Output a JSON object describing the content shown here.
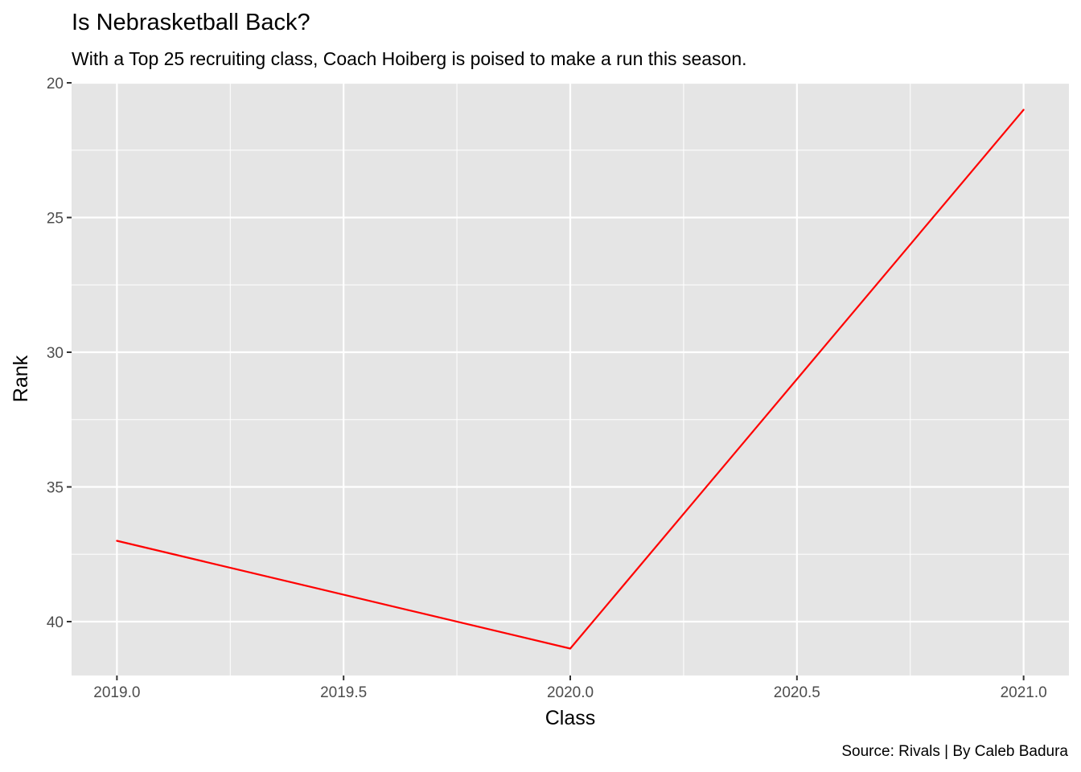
{
  "chart_data": {
    "type": "line",
    "title": "Is Nebrasketball Back?",
    "subtitle": "With a Top 25 recruiting class, Coach Hoiberg is poised to make a run this season.",
    "caption": "Source: Rivals | By Caleb Badura",
    "xlabel": "Class",
    "ylabel": "Rank",
    "x": [
      2019,
      2020,
      2021
    ],
    "series": [
      {
        "values": [
          37,
          41,
          21
        ],
        "color": "#ff0000"
      }
    ],
    "xlim": [
      2018.9,
      2021.1
    ],
    "ylim": [
      20,
      42
    ],
    "y_reversed": true,
    "x_ticks": [
      "2019.0",
      "2019.5",
      "2020.0",
      "2020.5",
      "2021.0"
    ],
    "y_ticks": [
      "20",
      "25",
      "30",
      "35",
      "40"
    ],
    "grid": true,
    "panel_background": "#e5e5e5",
    "grid_color": "#ffffff"
  }
}
